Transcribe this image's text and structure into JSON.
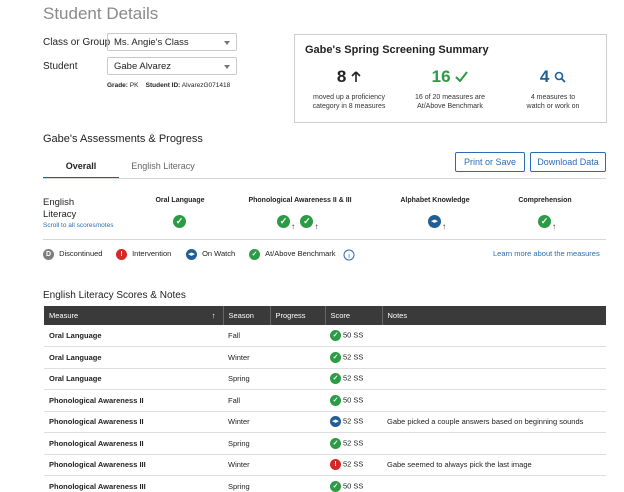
{
  "page_title": "Student Details",
  "filters": {
    "class_label": "Class or Group",
    "class_value": "Ms. Angie's Class",
    "student_label": "Student",
    "student_value": "Gabe Alvarez",
    "grade_label": "Grade:",
    "grade_value": "PK",
    "student_id_label": "Student ID:",
    "student_id_value": "AlvarezG071418"
  },
  "summary": {
    "title": "Gabe's Spring Screening Summary",
    "stats": [
      {
        "number": "8",
        "icon": "arrow-up-icon",
        "desc1": "moved up a proficiency",
        "desc2": "category in 8 measures",
        "color": "#222222"
      },
      {
        "number": "16",
        "icon": "check-icon",
        "desc1": "16 of 20 measures are",
        "desc2": "At/Above Benchmark",
        "color": "#2c9b45"
      },
      {
        "number": "4",
        "icon": "search-icon",
        "desc1": "4 measures to",
        "desc2": "watch or work on",
        "color": "#1f5f96"
      }
    ]
  },
  "assessments": {
    "title": "Gabe's Assessments & Progress",
    "tabs": [
      {
        "label": "Overall",
        "active": true
      },
      {
        "label": "English Literacy",
        "active": false
      }
    ],
    "print_label": "Print or Save",
    "download_label": "Download Data",
    "subject_line1": "English",
    "subject_line2": "Literacy",
    "scroll_link": "Scroll to all scores/notes",
    "categories": [
      {
        "name": "Oral Language",
        "icons": [
          "check-icon"
        ]
      },
      {
        "name": "Phonological Awareness II & III",
        "icons": [
          "check-up-icon",
          "check-up-icon"
        ]
      },
      {
        "name": "Alphabet Knowledge",
        "icons": [
          "eye-up-icon"
        ]
      },
      {
        "name": "Comprehension",
        "icons": [
          "check-up-icon"
        ]
      }
    ]
  },
  "legend": {
    "discontinued": "Discontinued",
    "intervention": "Intervention",
    "on_watch": "On Watch",
    "at_above": "At/Above Benchmark",
    "learn_more": "Learn more about the measures"
  },
  "scores": {
    "title": "English Literacy Scores & Notes",
    "headers": [
      "Measure",
      "Season",
      "Progress",
      "Score",
      "Notes"
    ],
    "rows": [
      {
        "measure": "Oral Language",
        "season": "Fall",
        "status": "check",
        "score": "50 SS",
        "notes": ""
      },
      {
        "measure": "Oral Language",
        "season": "Winter",
        "status": "check",
        "score": "52 SS",
        "notes": ""
      },
      {
        "measure": "Oral Language",
        "season": "Spring",
        "status": "check",
        "score": "52 SS",
        "notes": ""
      },
      {
        "measure": "Phonological Awareness II",
        "season": "Fall",
        "status": "check",
        "score": "50 SS",
        "notes": ""
      },
      {
        "measure": "Phonological Awareness II",
        "season": "Winter",
        "status": "watch",
        "score": "52 SS",
        "notes": "Gabe picked a couple answers based on beginning sounds"
      },
      {
        "measure": "Phonological Awareness II",
        "season": "Spring",
        "status": "check",
        "score": "52 SS",
        "notes": ""
      },
      {
        "measure": "Phonological Awareness III",
        "season": "Winter",
        "status": "intervention",
        "score": "52 SS",
        "notes": "Gabe seemed to always pick the last image"
      },
      {
        "measure": "Phonological Awareness III",
        "season": "Spring",
        "status": "check",
        "score": "50 SS",
        "notes": ""
      }
    ]
  }
}
